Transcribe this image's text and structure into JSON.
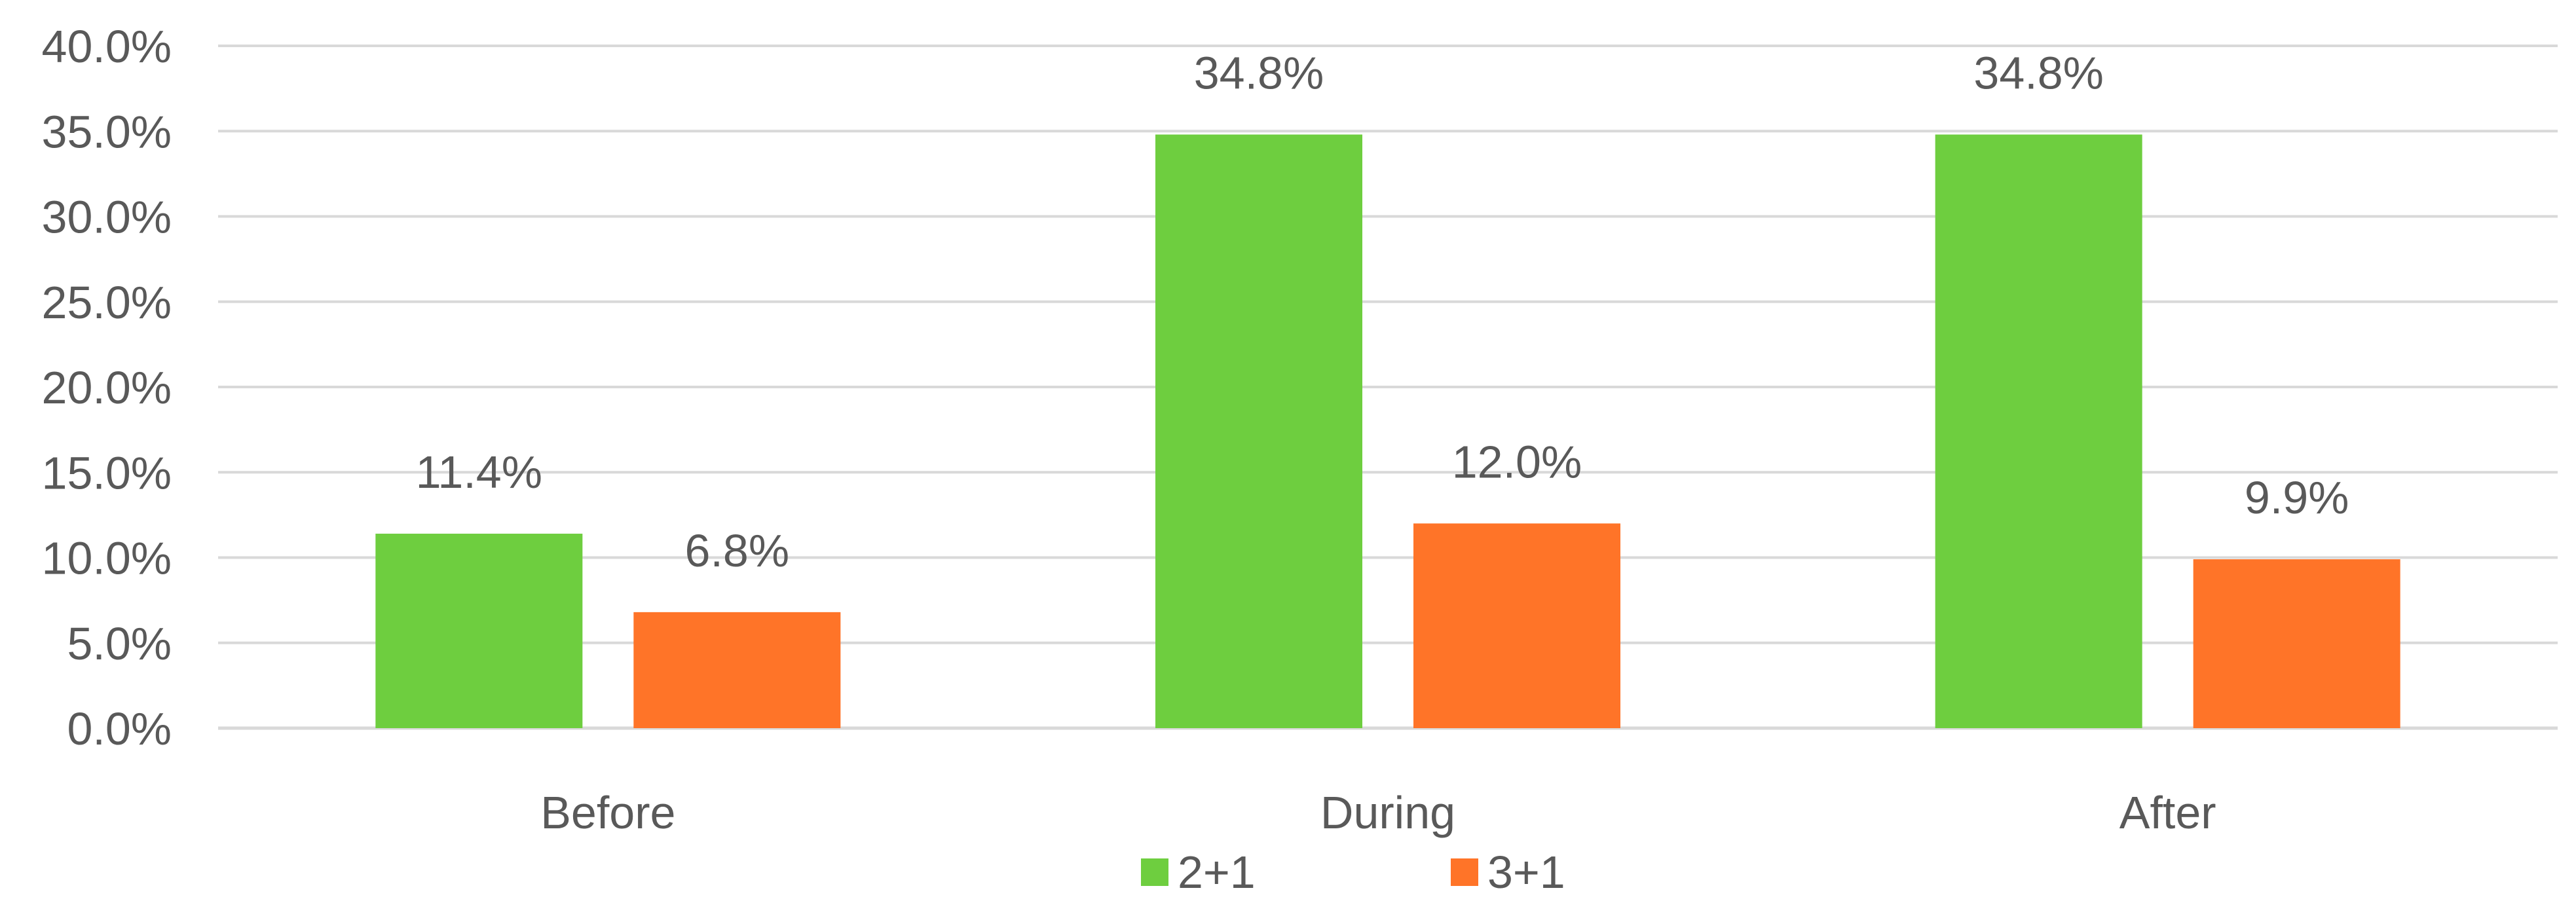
{
  "chart_data": {
    "type": "bar",
    "categories": [
      "Before",
      "During",
      "After"
    ],
    "series": [
      {
        "name": "2+1",
        "values": [
          11.4,
          34.8,
          34.8
        ],
        "labels": [
          "11.4%",
          "34.8%",
          "34.8%"
        ],
        "color": "#6ECE3F"
      },
      {
        "name": "3+1",
        "values": [
          6.8,
          12.0,
          9.9
        ],
        "labels": [
          "6.8%",
          "12.0%",
          "9.9%"
        ],
        "color": "#FF7428"
      }
    ],
    "ylim": [
      0,
      40
    ],
    "yticks": [
      0,
      5,
      10,
      15,
      20,
      25,
      30,
      35,
      40
    ],
    "ytick_labels": [
      "0.0%",
      "5.0%",
      "10.0%",
      "15.0%",
      "20.0%",
      "25.0%",
      "30.0%",
      "35.0%",
      "40.0%"
    ],
    "grid": true,
    "gridline_color": "#D9D9D9",
    "legend_position": "bottom",
    "title": "",
    "xlabel": "",
    "ylabel": ""
  }
}
